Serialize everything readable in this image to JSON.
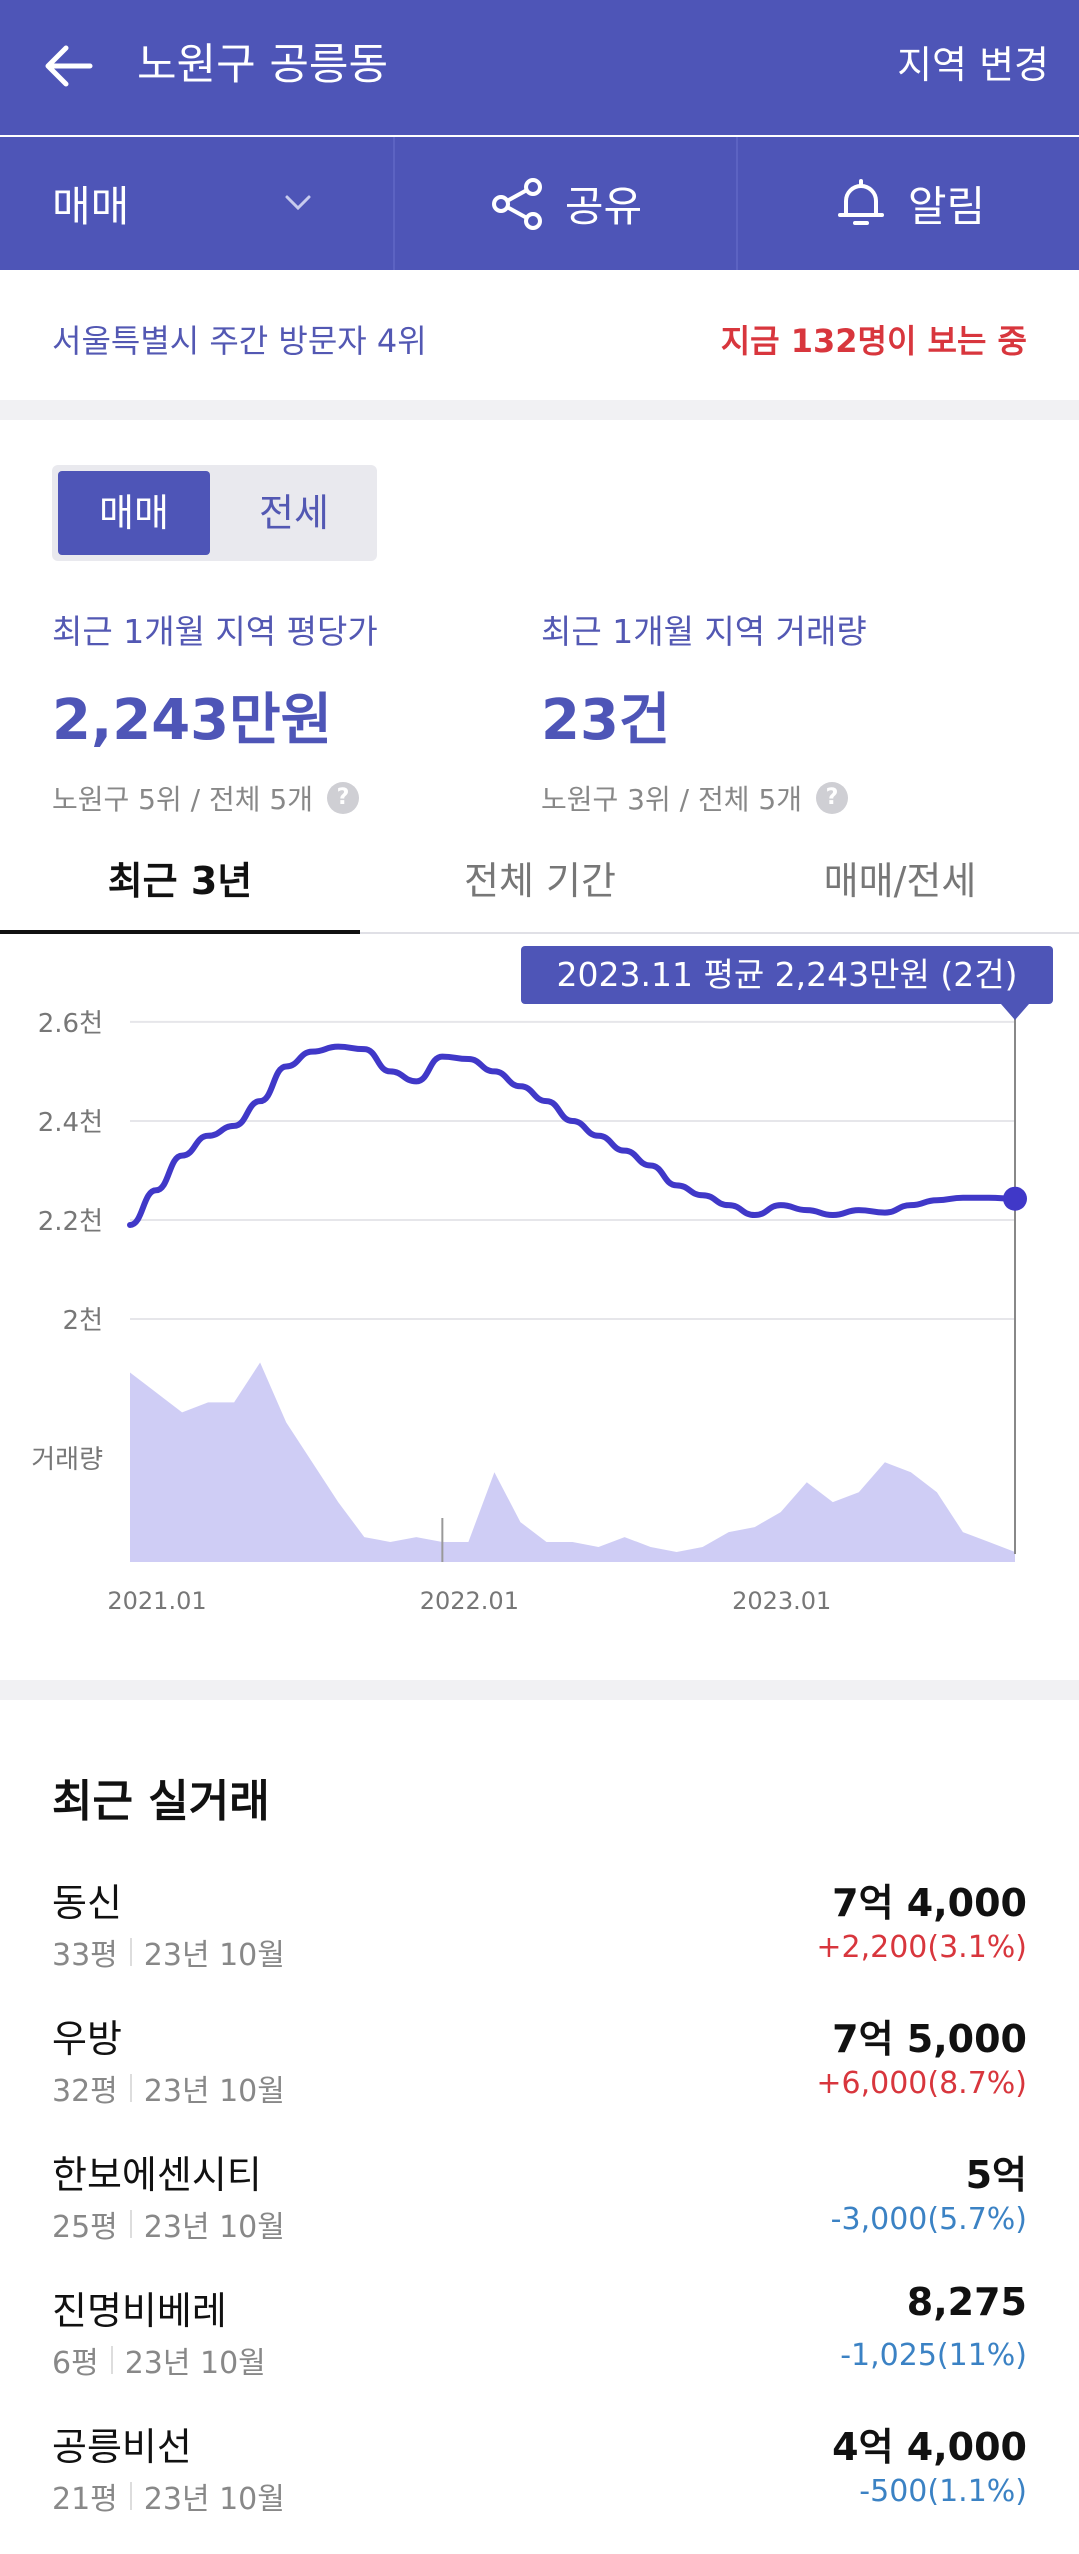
{
  "header": {
    "title": "노원구 공릉동",
    "region_change": "지역 변경"
  },
  "actions": {
    "trade_type": "매매",
    "share": "공유",
    "alert": "알림"
  },
  "stats": {
    "visitor_rank": "서울특별시 주간 방문자 4위",
    "viewing_now": "지금 132명이 보는 중"
  },
  "toggle": {
    "active": "매매",
    "inactive": "전세"
  },
  "metrics": [
    {
      "label": "최근 1개월 지역 평당가",
      "value": "2,243만원",
      "rank": "노원구 5위 / 전체 5개"
    },
    {
      "label": "최근 1개월 지역 거래량",
      "value": "23건",
      "rank": "노원구 3위 / 전체 5개"
    }
  ],
  "tabs": [
    "최근 3년",
    "전체 기간",
    "매매/전세"
  ],
  "chart_data": {
    "type": "line",
    "tooltip": "2023.11 평균 2,243만원 (2건)",
    "y_ticks": [
      "2.6천",
      "2.4천",
      "2.2천",
      "2천"
    ],
    "volume_label": "거래량",
    "x_ticks": [
      "2021.01",
      "2022.01",
      "2023.01"
    ],
    "series": [
      {
        "x": [
          "2021.01",
          "2021.02",
          "2021.03",
          "2021.04",
          "2021.05",
          "2021.06",
          "2021.07",
          "2021.08",
          "2021.09",
          "2021.10",
          "2021.11",
          "2021.12",
          "2022.01",
          "2022.02",
          "2022.03",
          "2022.04",
          "2022.05",
          "2022.06",
          "2022.07",
          "2022.08",
          "2022.09",
          "2022.10",
          "2022.11",
          "2022.12",
          "2023.01",
          "2023.02",
          "2023.03",
          "2023.04",
          "2023.05",
          "2023.06",
          "2023.07",
          "2023.08",
          "2023.09",
          "2023.10",
          "2023.11"
        ],
        "values": [
          2190,
          2260,
          2330,
          2370,
          2390,
          2440,
          2510,
          2540,
          2550,
          2545,
          2500,
          2480,
          2530,
          2525,
          2500,
          2470,
          2440,
          2400,
          2370,
          2340,
          2310,
          2270,
          2250,
          2230,
          2210,
          2230,
          2220,
          2210,
          2220,
          2215,
          2230,
          2240,
          2245,
          2245,
          2243
        ]
      },
      {
        "name": "거래량",
        "x": [
          "2021.01",
          "2021.02",
          "2021.03",
          "2021.04",
          "2021.05",
          "2021.06",
          "2021.07",
          "2021.08",
          "2021.09",
          "2021.10",
          "2021.11",
          "2021.12",
          "2022.01",
          "2022.02",
          "2022.03",
          "2022.04",
          "2022.05",
          "2022.06",
          "2022.07",
          "2022.08",
          "2022.09",
          "2022.10",
          "2022.11",
          "2022.12",
          "2023.01",
          "2023.02",
          "2023.03",
          "2023.04",
          "2023.05",
          "2023.06",
          "2023.07",
          "2023.08",
          "2023.09",
          "2023.10",
          "2023.11"
        ],
        "values": [
          38,
          34,
          30,
          32,
          32,
          40,
          28,
          20,
          12,
          5,
          4,
          5,
          4,
          4,
          18,
          8,
          4,
          4,
          3,
          5,
          3,
          2,
          3,
          6,
          7,
          10,
          16,
          12,
          14,
          20,
          18,
          14,
          6,
          4,
          2
        ]
      }
    ],
    "ylim": [
      1900,
      2650
    ]
  },
  "recent": {
    "title": "최근 실거래",
    "deals": [
      {
        "name": "동신",
        "size": "33평",
        "date": "23년 10월",
        "price": "7억 4,000",
        "change": "+2,200(3.1%)",
        "dir": "up"
      },
      {
        "name": "우방",
        "size": "32평",
        "date": "23년 10월",
        "price": "7억 5,000",
        "change": "+6,000(8.7%)",
        "dir": "up"
      },
      {
        "name": "한보에센시티",
        "size": "25평",
        "date": "23년 10월",
        "price": "5억",
        "change": "-3,000(5.7%)",
        "dir": "down"
      },
      {
        "name": "진명비베레",
        "size": "6평",
        "date": "23년 10월",
        "price": "8,275",
        "change": "-1,025(11%)",
        "dir": "down"
      },
      {
        "name": "공릉비선",
        "size": "21평",
        "date": "23년 10월",
        "price": "4억 4,000",
        "change": "-500(1.1%)",
        "dir": "down"
      }
    ]
  },
  "colors": {
    "brand": "#4e55b7",
    "up": "#d8363d",
    "down": "#3b82c4",
    "volume_fill": "#cfcdf5"
  },
  "icons": {
    "back": "arrow-left-icon",
    "chevron": "chevron-down-icon",
    "share": "share-icon",
    "alert": "bell-icon",
    "help": "question-icon"
  }
}
